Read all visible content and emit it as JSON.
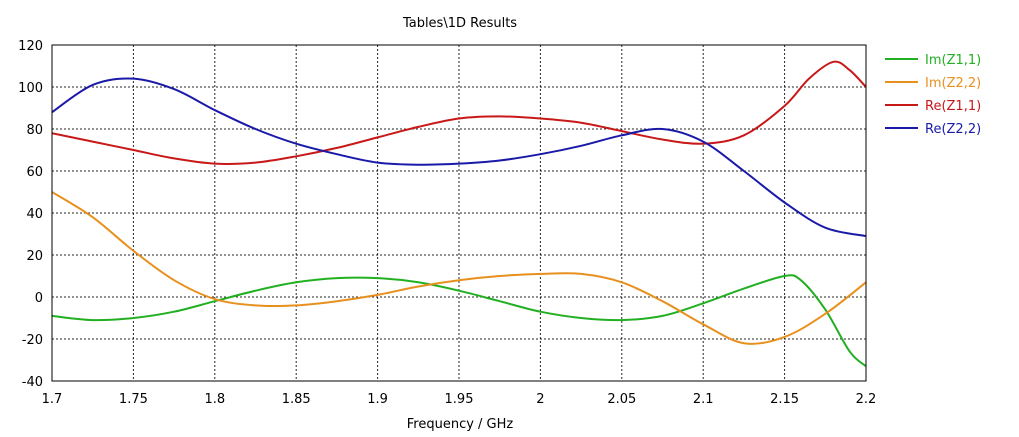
{
  "chart_data": {
    "type": "line",
    "title": "Tables\\1D Results",
    "xlabel": "Frequency / GHz",
    "ylabel": "",
    "xlim": [
      1.7,
      2.2
    ],
    "ylim": [
      -40,
      120
    ],
    "xticks": [
      1.7,
      1.75,
      1.8,
      1.85,
      1.9,
      1.95,
      2.0,
      2.05,
      2.1,
      2.15,
      2.2
    ],
    "xtick_labels": [
      "1.7",
      "1.75",
      "1.8",
      "1.85",
      "1.9",
      "1.95",
      "2",
      "2.05",
      "2.1",
      "2.15",
      "2.2"
    ],
    "yticks": [
      -40,
      -20,
      0,
      20,
      40,
      60,
      80,
      100,
      120
    ],
    "ytick_labels": [
      "-40",
      "-20",
      "0",
      "20",
      "40",
      "60",
      "80",
      "100",
      "120"
    ],
    "grid": true,
    "legend_position": "right",
    "series": [
      {
        "name": "Im(Z1,1)",
        "color": "#22b022",
        "x": [
          1.7,
          1.725,
          1.75,
          1.775,
          1.8,
          1.825,
          1.85,
          1.875,
          1.9,
          1.925,
          1.95,
          1.975,
          2.0,
          2.025,
          2.05,
          2.075,
          2.1,
          2.125,
          2.15,
          2.16,
          2.175,
          2.19,
          2.2
        ],
        "y": [
          -9,
          -11,
          -10,
          -7,
          -2,
          3,
          7,
          9,
          9,
          7,
          3,
          -2,
          -7,
          -10,
          -11,
          -9,
          -3,
          4,
          10,
          8,
          -6,
          -26,
          -33
        ]
      },
      {
        "name": "Im(Z2,2)",
        "color": "#e8901e",
        "x": [
          1.7,
          1.725,
          1.75,
          1.775,
          1.8,
          1.825,
          1.85,
          1.875,
          1.9,
          1.925,
          1.95,
          1.975,
          2.0,
          2.025,
          2.05,
          2.075,
          2.1,
          2.125,
          2.15,
          2.175,
          2.2
        ],
        "y": [
          50,
          38,
          22,
          8,
          -1,
          -4,
          -4,
          -2,
          1,
          5,
          8,
          10,
          11,
          11,
          7,
          -2,
          -13,
          -22,
          -19,
          -8,
          7
        ]
      },
      {
        "name": "Re(Z1,1)",
        "color": "#c81818",
        "x": [
          1.7,
          1.725,
          1.75,
          1.775,
          1.8,
          1.825,
          1.85,
          1.875,
          1.9,
          1.925,
          1.95,
          1.975,
          2.0,
          2.025,
          2.05,
          2.075,
          2.1,
          2.125,
          2.15,
          2.165,
          2.18,
          2.19,
          2.2
        ],
        "y": [
          78,
          74,
          70,
          66,
          63.5,
          64,
          67,
          71,
          76,
          81,
          85,
          86,
          85,
          83,
          79,
          75,
          73,
          77,
          91,
          104,
          112,
          108,
          100
        ]
      },
      {
        "name": "Re(Z2,2)",
        "color": "#1a1aa8",
        "x": [
          1.7,
          1.725,
          1.75,
          1.775,
          1.8,
          1.825,
          1.85,
          1.875,
          1.9,
          1.925,
          1.95,
          1.975,
          2.0,
          2.025,
          2.05,
          2.075,
          2.1,
          2.125,
          2.15,
          2.175,
          2.2
        ],
        "y": [
          88,
          101,
          104,
          99,
          89,
          80,
          73,
          68,
          64,
          63,
          63.5,
          65,
          68,
          72,
          77,
          80,
          74,
          60,
          45,
          33,
          29
        ]
      }
    ]
  }
}
